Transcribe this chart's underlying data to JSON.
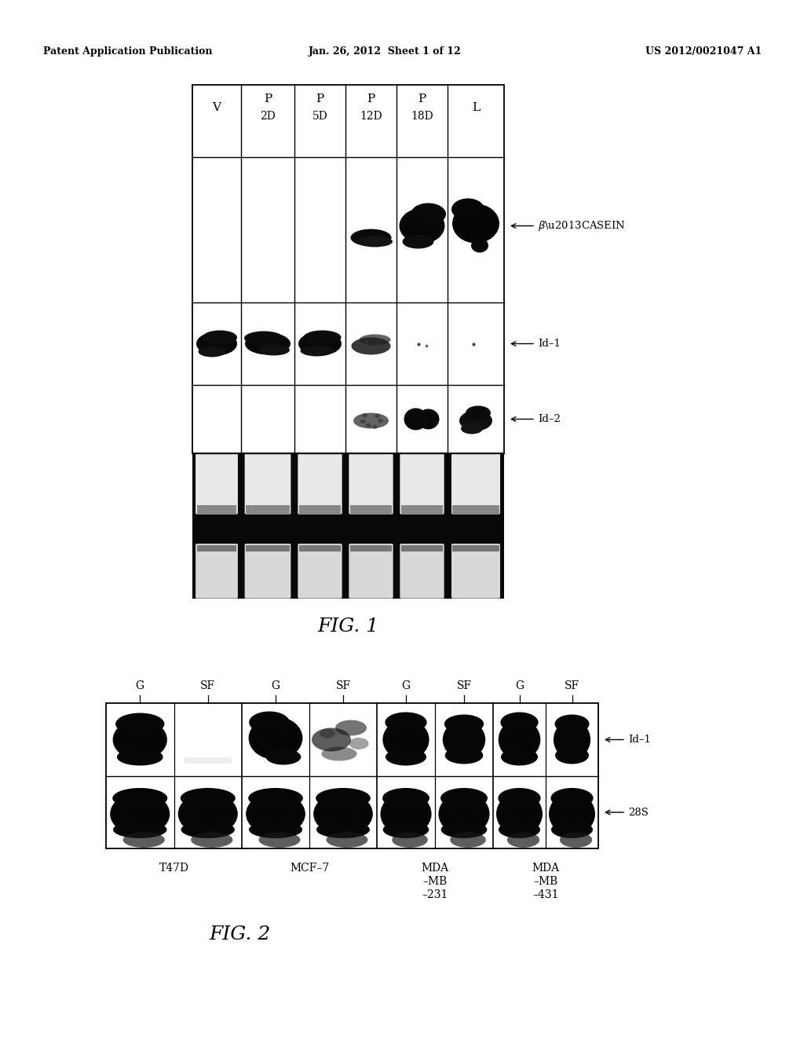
{
  "header_left": "Patent Application Publication",
  "header_center": "Jan. 26, 2012  Sheet 1 of 12",
  "header_right": "US 2012/0021047 A1",
  "fig1_title": "FIG. 1",
  "fig2_title": "FIG. 2",
  "bg_color": "#ffffff",
  "black": "#000000"
}
